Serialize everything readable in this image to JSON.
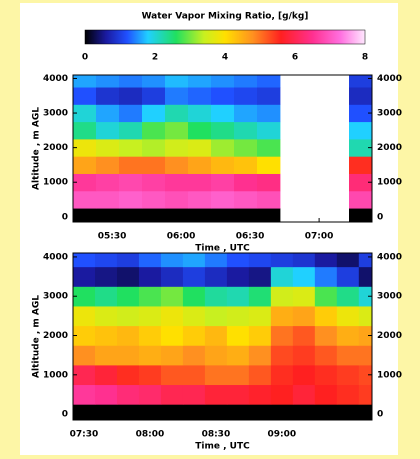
{
  "colorbar": {
    "title": "Water Vapor Mixing Ratio, [g/kg]",
    "clim": [
      0,
      8
    ],
    "ticks": [
      0,
      2,
      4,
      6,
      8
    ],
    "colormap": [
      {
        "value": 0,
        "color": "#000000"
      },
      {
        "value": 0.6,
        "color": "#1a1aa0"
      },
      {
        "value": 1.2,
        "color": "#2050ff"
      },
      {
        "value": 1.8,
        "color": "#20d0ff"
      },
      {
        "value": 2.6,
        "color": "#20e060"
      },
      {
        "value": 3.4,
        "color": "#c8f020"
      },
      {
        "value": 4.0,
        "color": "#ffe000"
      },
      {
        "value": 4.8,
        "color": "#ff9020"
      },
      {
        "value": 5.6,
        "color": "#ff2020"
      },
      {
        "value": 6.5,
        "color": "#ff3090"
      },
      {
        "value": 7.3,
        "color": "#ff70e0"
      },
      {
        "value": 8,
        "color": "#ffe8ff"
      }
    ]
  },
  "chart_data": [
    {
      "type": "heatmap",
      "xlabel": "Time , UTC",
      "ylabel": "Altitude , m AGL",
      "xlim": [
        313,
        443
      ],
      "ylim": [
        -150,
        4100
      ],
      "xticks": [
        {
          "value": 330,
          "label": "05:30"
        },
        {
          "value": 360,
          "label": "06:00"
        },
        {
          "value": 390,
          "label": "06:30"
        },
        {
          "value": 420,
          "label": "07:00"
        }
      ],
      "yticks": [
        0,
        1000,
        2000,
        3000,
        4000
      ],
      "xbins": [
        313,
        323,
        333,
        343,
        353,
        363,
        373,
        383,
        393,
        403,
        413,
        423,
        433,
        443
      ],
      "ybins": [
        -150,
        250,
        750,
        1250,
        1750,
        2250,
        2750,
        3250,
        3750,
        4100
      ],
      "values": [
        [
          0,
          0,
          0,
          0,
          0,
          0,
          0,
          0,
          0,
          null,
          null,
          null,
          0
        ],
        [
          7.0,
          7.0,
          7.1,
          7.0,
          6.9,
          7.0,
          7.1,
          7.0,
          6.9,
          null,
          null,
          null,
          6.8
        ],
        [
          6.6,
          6.7,
          6.8,
          6.7,
          6.6,
          6.6,
          6.7,
          6.5,
          6.4,
          null,
          null,
          null,
          6.3
        ],
        [
          4.6,
          4.8,
          5.0,
          5.0,
          4.8,
          4.6,
          4.4,
          4.3,
          4.0,
          null,
          null,
          null,
          5.5
        ],
        [
          3.8,
          3.6,
          3.4,
          3.3,
          3.5,
          3.6,
          3.2,
          3.0,
          2.8,
          null,
          null,
          null,
          2.2
        ],
        [
          2.4,
          2.0,
          2.2,
          2.8,
          3.0,
          2.6,
          2.4,
          2.2,
          2.0,
          null,
          null,
          null,
          1.8
        ],
        [
          2.0,
          1.6,
          1.4,
          1.8,
          2.2,
          2.0,
          1.8,
          1.6,
          1.5,
          null,
          null,
          null,
          1.2
        ],
        [
          1.2,
          0.9,
          0.8,
          1.0,
          1.4,
          1.3,
          1.2,
          1.1,
          1.0,
          null,
          null,
          null,
          0.8
        ],
        [
          1.6,
          1.5,
          1.4,
          1.5,
          1.7,
          1.6,
          1.5,
          1.4,
          1.3,
          null,
          null,
          null,
          1.0
        ]
      ]
    },
    {
      "type": "heatmap",
      "xlabel": "Time , UTC",
      "ylabel": "Altitude , m AGL",
      "xlim": [
        445,
        581
      ],
      "ylim": [
        -150,
        4100
      ],
      "xticks": [
        {
          "value": 450,
          "label": "07:30"
        },
        {
          "value": 480,
          "label": "08:00"
        },
        {
          "value": 510,
          "label": "08:30"
        },
        {
          "value": 540,
          "label": "09:00"
        }
      ],
      "yticks": [
        0,
        1000,
        2000,
        3000,
        4000
      ],
      "xbins": [
        445,
        455,
        465,
        475,
        485,
        495,
        505,
        515,
        525,
        535,
        545,
        555,
        565,
        575,
        581
      ],
      "ybins": [
        -150,
        250,
        750,
        1250,
        1750,
        2250,
        2750,
        3250,
        3750,
        4100
      ],
      "values": [
        [
          0,
          0,
          0,
          0,
          0,
          0,
          0,
          0,
          0,
          0,
          0,
          0,
          0,
          0
        ],
        [
          6.6,
          6.5,
          6.3,
          6.2,
          6.0,
          6.0,
          5.8,
          5.8,
          5.7,
          5.6,
          5.8,
          5.6,
          5.5,
          5.4
        ],
        [
          6.0,
          5.8,
          5.5,
          5.4,
          5.2,
          5.2,
          5.0,
          5.0,
          5.2,
          5.5,
          5.6,
          5.5,
          5.4,
          5.3
        ],
        [
          4.8,
          4.6,
          4.6,
          4.5,
          4.6,
          4.8,
          4.6,
          4.5,
          4.8,
          5.3,
          5.4,
          5.2,
          5.0,
          5.0
        ],
        [
          4.2,
          4.3,
          4.4,
          4.2,
          4.0,
          4.2,
          4.4,
          4.0,
          4.2,
          5.0,
          5.2,
          4.8,
          4.5,
          4.6
        ],
        [
          3.8,
          3.6,
          3.5,
          3.6,
          3.8,
          3.6,
          3.4,
          3.5,
          3.6,
          4.5,
          4.6,
          4.2,
          3.8,
          3.6
        ],
        [
          2.6,
          2.4,
          2.6,
          2.8,
          3.0,
          2.6,
          2.3,
          2.2,
          2.5,
          3.5,
          3.6,
          2.8,
          2.4,
          2.0
        ],
        [
          0.6,
          0.5,
          0.4,
          0.6,
          0.8,
          1.0,
          0.8,
          0.6,
          0.5,
          2.0,
          1.8,
          1.4,
          1.0,
          0.4
        ],
        [
          1.2,
          1.1,
          1.0,
          1.3,
          1.5,
          1.6,
          1.4,
          1.2,
          1.1,
          1.0,
          0.9,
          0.6,
          0.4,
          1.0
        ]
      ]
    }
  ]
}
